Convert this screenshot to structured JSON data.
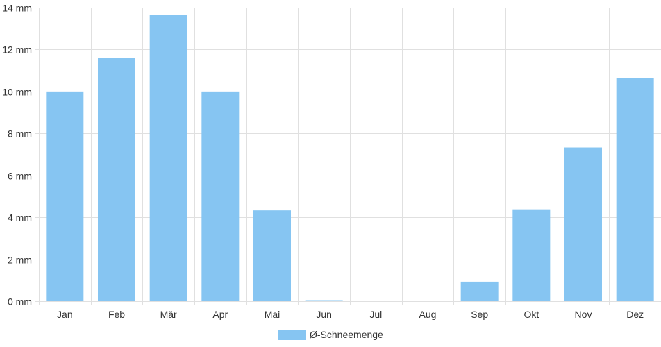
{
  "chart_data": {
    "type": "bar",
    "categories": [
      "Jan",
      "Feb",
      "Mär",
      "Apr",
      "Mai",
      "Jun",
      "Jul",
      "Aug",
      "Sep",
      "Okt",
      "Nov",
      "Dez"
    ],
    "series": [
      {
        "name": "Ø-Schneemenge",
        "values": [
          10.0,
          11.6,
          13.65,
          10.0,
          4.33,
          0.05,
          0.0,
          0.0,
          0.93,
          4.38,
          7.33,
          10.65
        ],
        "color": "#86c5f2"
      }
    ],
    "y_ticks": [
      "0 mm",
      "2 mm",
      "4 mm",
      "6 mm",
      "8 mm",
      "10 mm",
      "12 mm",
      "14 mm"
    ],
    "ylim": [
      0,
      14
    ],
    "y_step": 2,
    "grid": true,
    "legend": "bottom-center",
    "grid_color": "#e0e0e0",
    "text_color": "#333333"
  }
}
